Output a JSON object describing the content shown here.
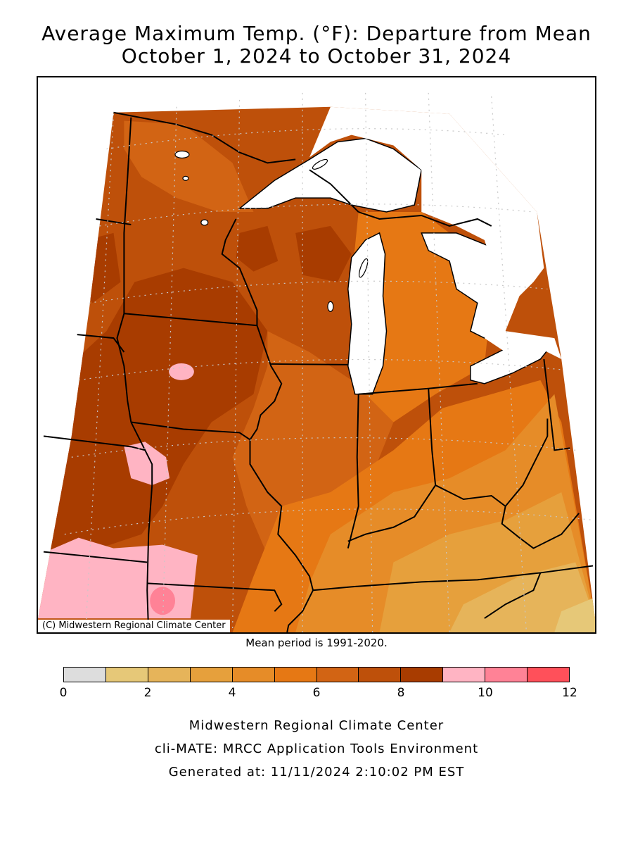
{
  "title": {
    "line1": "Average Maximum Temp. (°F): Departure from Mean",
    "line2": "October 1, 2024 to October 31, 2024"
  },
  "map": {
    "credit": "(C) Midwestern Regional Climate Center",
    "lake_color": "#ffffff",
    "outside_color": "#ffffff"
  },
  "mean_period": "Mean period is 1991-2020.",
  "legend": {
    "bins": [
      {
        "from": 0,
        "to": 1,
        "color": "#dddddd"
      },
      {
        "from": 1,
        "to": 2,
        "color": "#e6c878"
      },
      {
        "from": 2,
        "to": 3,
        "color": "#e6b45a"
      },
      {
        "from": 3,
        "to": 4,
        "color": "#e6a03c"
      },
      {
        "from": 4,
        "to": 5,
        "color": "#e68c28"
      },
      {
        "from": 5,
        "to": 6,
        "color": "#e67814"
      },
      {
        "from": 6,
        "to": 7,
        "color": "#d26414"
      },
      {
        "from": 7,
        "to": 8,
        "color": "#be500a"
      },
      {
        "from": 8,
        "to": 9,
        "color": "#a83c00"
      },
      {
        "from": 9,
        "to": 10,
        "color": "#ffb4c3"
      },
      {
        "from": 10,
        "to": 11,
        "color": "#ff8296"
      },
      {
        "from": 11,
        "to": 12,
        "color": "#ff505a"
      }
    ],
    "ticks": [
      "0",
      "2",
      "4",
      "6",
      "8",
      "10",
      "12"
    ]
  },
  "footer": {
    "line1": "Midwestern Regional Climate Center",
    "line2": "cli-MATE: MRCC Application Tools Environment",
    "line3": "Generated at: 11/11/2024 2:10:02 PM EST"
  }
}
